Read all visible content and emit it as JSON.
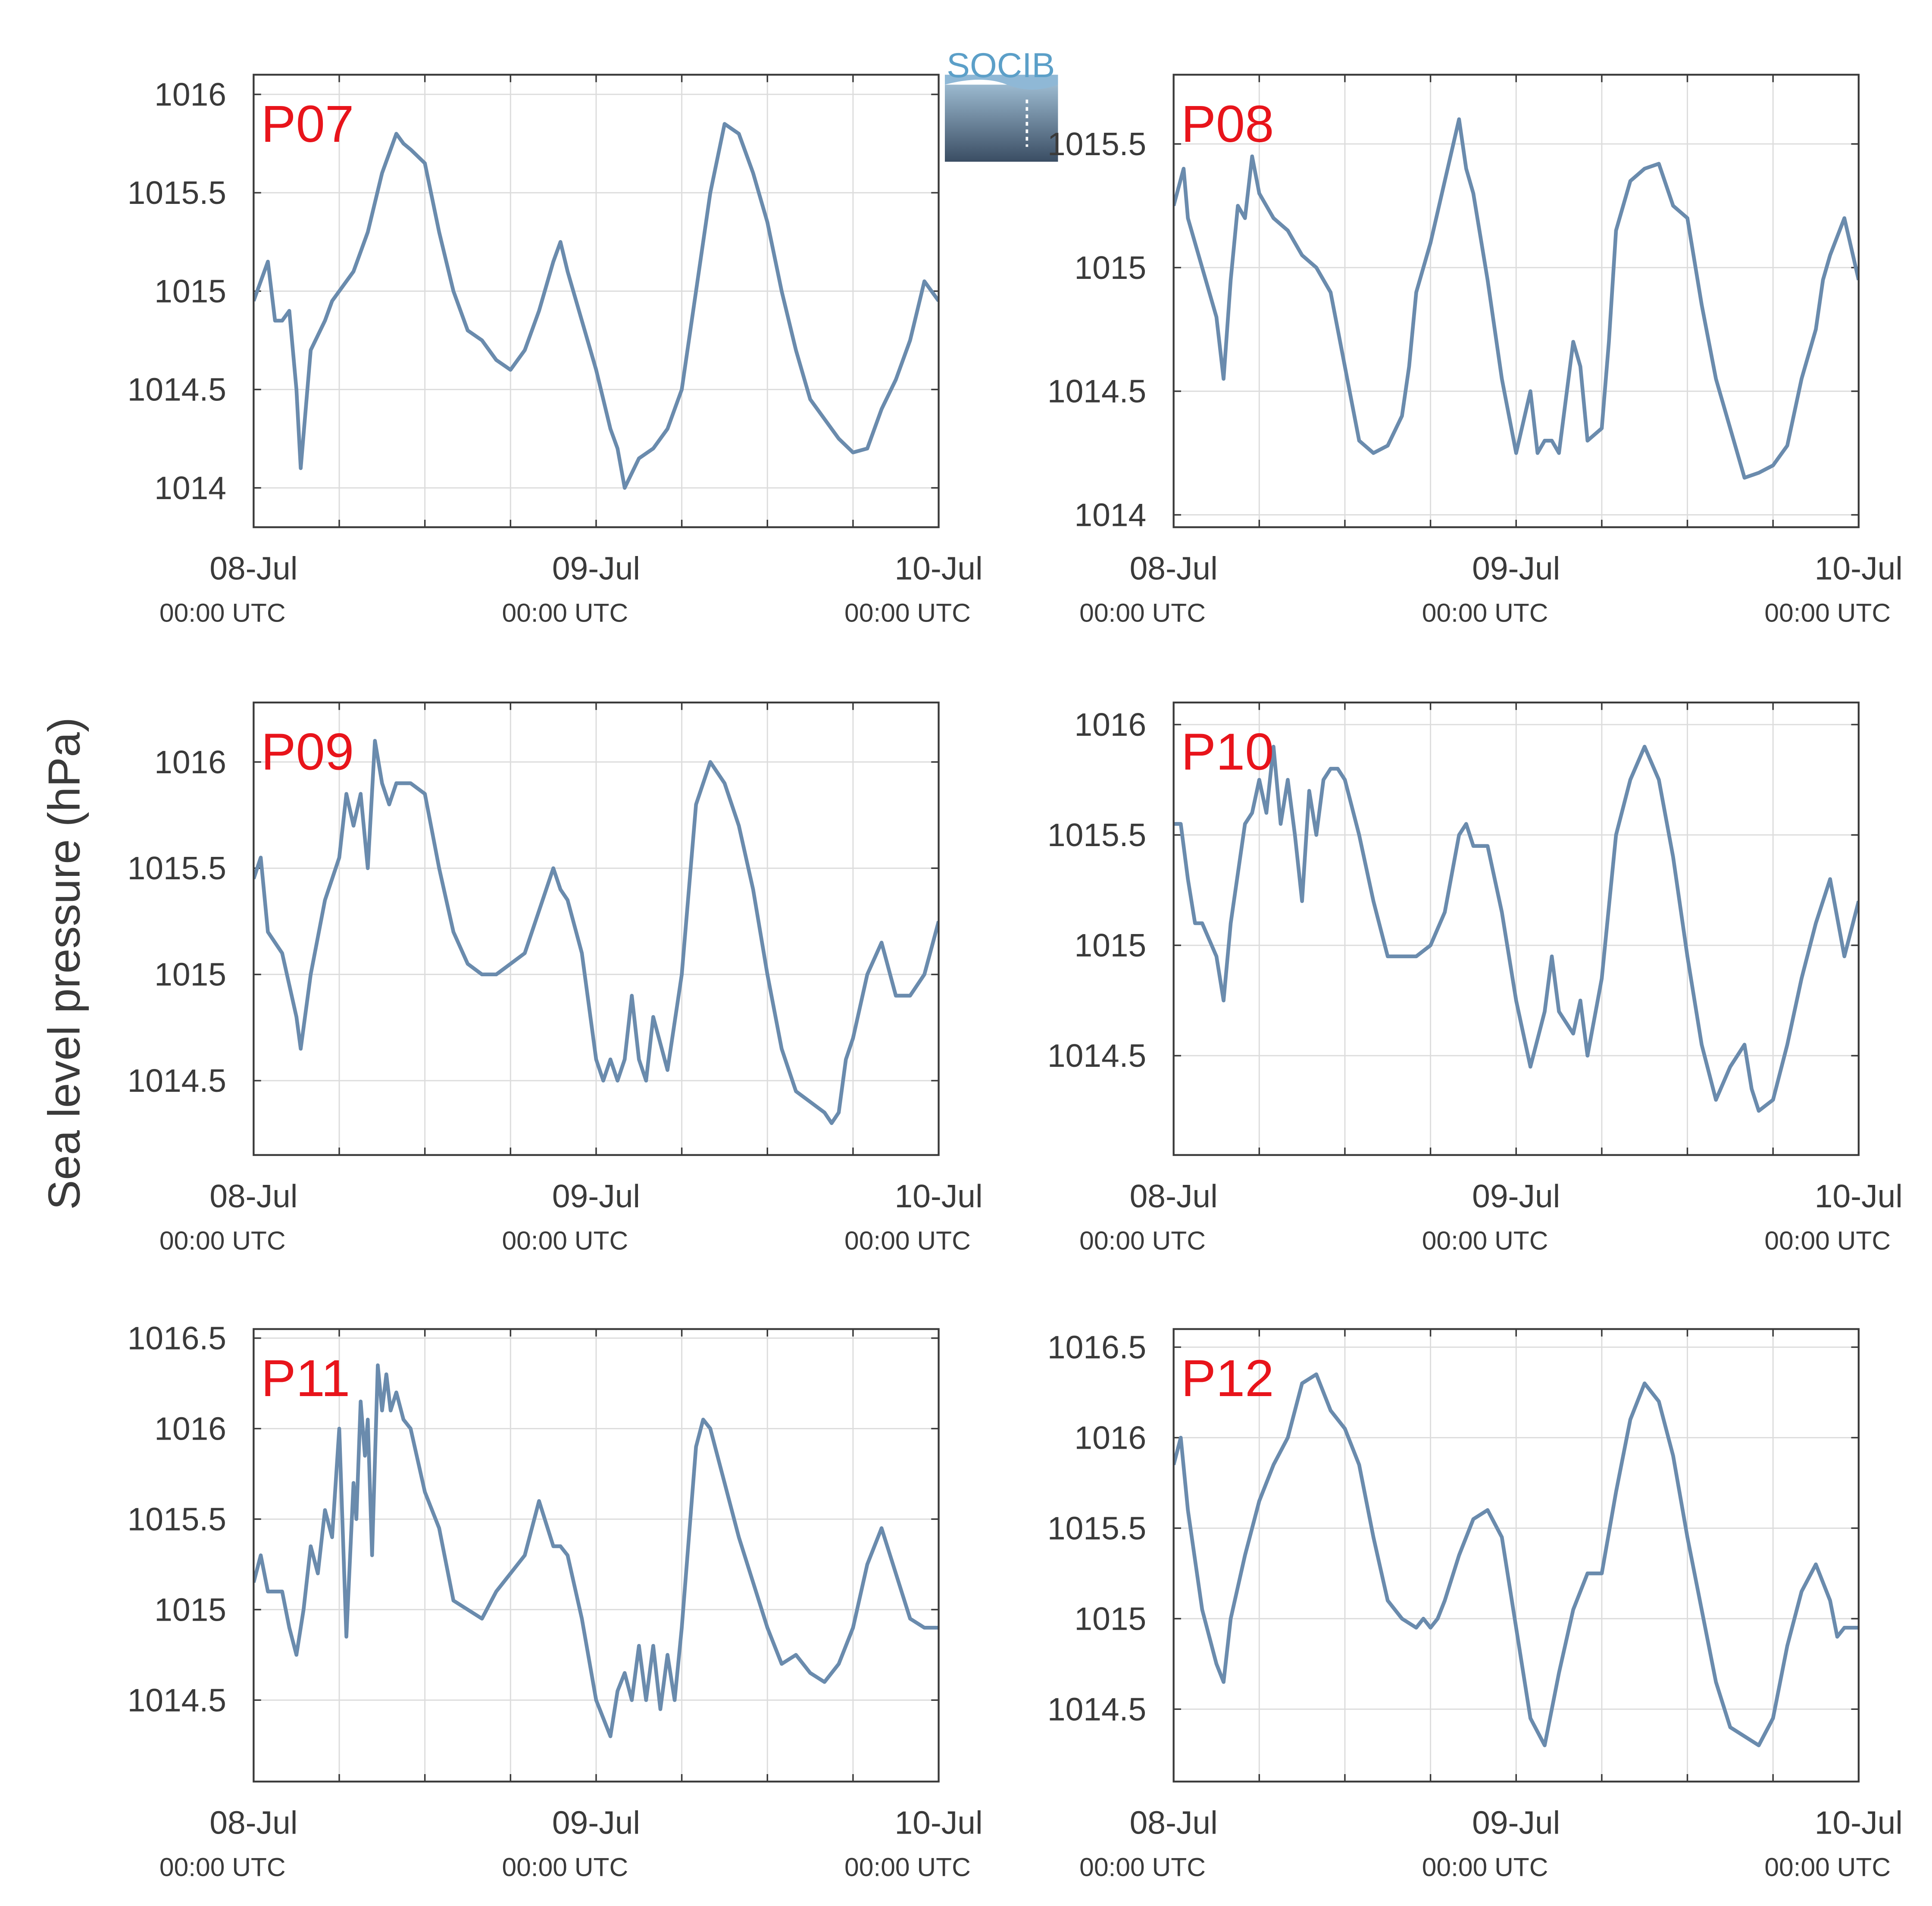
{
  "figure": {
    "ylabel": "Sea level pressure (hPa)",
    "logo_text": "SOCIB",
    "colors": {
      "line": "#6a8bad",
      "panel_label": "#e8141b",
      "grid": "#dcdcdc",
      "axis": "#3a3a3a",
      "text": "#3a3a3a"
    }
  },
  "chart_data": [
    {
      "type": "line",
      "label": "P07",
      "x_ticks": [
        "08-Jul",
        "09-Jul",
        "10-Jul"
      ],
      "x_tick_sub": "00:00 UTC",
      "xlim_hours": [
        0,
        48
      ],
      "ylim": [
        1013.8,
        1016.1
      ],
      "y_ticks": [
        1014,
        1014.5,
        1015,
        1015.5,
        1016
      ],
      "y_tick_labels": [
        "1014",
        "1014.5",
        "1015",
        "1015.5",
        "1016"
      ],
      "hours": [
        0,
        1,
        1.5,
        2,
        2.5,
        3,
        3.3,
        4,
        5,
        5.5,
        6,
        7,
        8,
        9,
        10,
        10.5,
        11,
        12,
        13,
        14,
        15,
        16,
        17,
        18,
        19,
        20,
        21,
        21.5,
        22,
        23,
        24,
        25,
        25.5,
        26,
        27,
        28,
        29,
        30,
        31,
        32,
        33,
        34,
        35,
        36,
        37,
        38,
        39,
        40,
        41,
        42,
        43,
        44,
        45,
        46,
        47,
        48
      ],
      "values": [
        1014.95,
        1015.15,
        1014.85,
        1014.85,
        1014.9,
        1014.5,
        1014.1,
        1014.7,
        1014.85,
        1014.95,
        1015.0,
        1015.1,
        1015.3,
        1015.6,
        1015.8,
        1015.75,
        1015.72,
        1015.65,
        1015.3,
        1015.0,
        1014.8,
        1014.75,
        1014.65,
        1014.6,
        1014.7,
        1014.9,
        1015.15,
        1015.25,
        1015.1,
        1014.85,
        1014.6,
        1014.3,
        1014.2,
        1014.0,
        1014.15,
        1014.2,
        1014.3,
        1014.5,
        1015.0,
        1015.5,
        1015.85,
        1015.8,
        1015.6,
        1015.35,
        1015.0,
        1014.7,
        1014.45,
        1014.35,
        1014.25,
        1014.18,
        1014.2,
        1014.4,
        1014.55,
        1014.75,
        1015.05,
        1014.95
      ]
    },
    {
      "type": "line",
      "label": "P08",
      "x_ticks": [
        "08-Jul",
        "09-Jul",
        "10-Jul"
      ],
      "x_tick_sub": "00:00 UTC",
      "xlim_hours": [
        0,
        48
      ],
      "ylim": [
        1013.95,
        1015.78
      ],
      "y_ticks": [
        1014,
        1014.5,
        1015,
        1015.5
      ],
      "y_tick_labels": [
        "1014",
        "1014.5",
        "1015",
        "1015.5"
      ],
      "hours": [
        0,
        0.7,
        1,
        2,
        3,
        3.5,
        4,
        4.5,
        5,
        5.5,
        6,
        6.5,
        7,
        8,
        9,
        10,
        11,
        12,
        13,
        14,
        15,
        16,
        16.5,
        17,
        18,
        19,
        20,
        20.5,
        21,
        22,
        23,
        24,
        25,
        25.5,
        26,
        26.5,
        27,
        28,
        28.5,
        29,
        30,
        30.5,
        31,
        32,
        33,
        34,
        35,
        36,
        37,
        38,
        39,
        40,
        41,
        42,
        43,
        44,
        45,
        45.5,
        46,
        47,
        48
      ],
      "values": [
        1015.25,
        1015.4,
        1015.2,
        1015.0,
        1014.8,
        1014.55,
        1014.95,
        1015.25,
        1015.2,
        1015.45,
        1015.3,
        1015.25,
        1015.2,
        1015.15,
        1015.05,
        1015.0,
        1014.9,
        1014.6,
        1014.3,
        1014.25,
        1014.28,
        1014.4,
        1014.6,
        1014.9,
        1015.1,
        1015.35,
        1015.6,
        1015.4,
        1015.3,
        1014.95,
        1014.55,
        1014.25,
        1014.5,
        1014.25,
        1014.3,
        1014.3,
        1014.25,
        1014.7,
        1014.6,
        1014.3,
        1014.35,
        1014.7,
        1015.15,
        1015.35,
        1015.4,
        1015.42,
        1015.25,
        1015.2,
        1014.85,
        1014.55,
        1014.35,
        1014.15,
        1014.17,
        1014.2,
        1014.28,
        1014.55,
        1014.75,
        1014.95,
        1015.05,
        1015.2,
        1014.95
      ]
    },
    {
      "type": "line",
      "label": "P09",
      "x_ticks": [
        "08-Jul",
        "09-Jul",
        "10-Jul"
      ],
      "x_tick_sub": "00:00 UTC",
      "xlim_hours": [
        0,
        48
      ],
      "ylim": [
        1014.15,
        1016.28
      ],
      "y_ticks": [
        1014.5,
        1015,
        1015.5,
        1016
      ],
      "y_tick_labels": [
        "1014.5",
        "1015",
        "1015.5",
        "1016"
      ],
      "hours": [
        0,
        0.5,
        1,
        2,
        2.5,
        3,
        3.3,
        4,
        5,
        6,
        6.5,
        7,
        7.5,
        8,
        8.5,
        9,
        9.5,
        10,
        11,
        12,
        13,
        14,
        15,
        16,
        17,
        18,
        19,
        20,
        21,
        21.5,
        22,
        23,
        24,
        24.5,
        25,
        25.5,
        26,
        26.5,
        27,
        27.5,
        28,
        29,
        30,
        31,
        32,
        32.5,
        33,
        34,
        35,
        36,
        37,
        38,
        39,
        40,
        40.5,
        41,
        41.5,
        42,
        43,
        44,
        45,
        46,
        47,
        48
      ],
      "values": [
        1015.45,
        1015.55,
        1015.2,
        1015.1,
        1014.95,
        1014.8,
        1014.65,
        1015.0,
        1015.35,
        1015.55,
        1015.85,
        1015.7,
        1015.85,
        1015.5,
        1016.1,
        1015.9,
        1015.8,
        1015.9,
        1015.9,
        1015.85,
        1015.5,
        1015.2,
        1015.05,
        1015.0,
        1015.0,
        1015.05,
        1015.1,
        1015.3,
        1015.5,
        1015.4,
        1015.35,
        1015.1,
        1014.6,
        1014.5,
        1014.6,
        1014.5,
        1014.6,
        1014.9,
        1014.6,
        1014.5,
        1014.8,
        1014.55,
        1015.0,
        1015.8,
        1016.0,
        1015.95,
        1015.9,
        1015.7,
        1015.4,
        1015.0,
        1014.65,
        1014.45,
        1014.4,
        1014.35,
        1014.3,
        1014.35,
        1014.6,
        1014.7,
        1015.0,
        1015.15,
        1014.9,
        1014.9,
        1015.0,
        1015.25
      ]
    },
    {
      "type": "line",
      "label": "P10",
      "x_ticks": [
        "08-Jul",
        "09-Jul",
        "10-Jul"
      ],
      "x_tick_sub": "00:00 UTC",
      "xlim_hours": [
        0,
        48
      ],
      "ylim": [
        1014.05,
        1016.1
      ],
      "y_ticks": [
        1014.5,
        1015,
        1015.5,
        1016
      ],
      "y_tick_labels": [
        "1014.5",
        "1015",
        "1015.5",
        "1016"
      ],
      "hours": [
        0,
        0.5,
        1,
        1.5,
        2,
        3,
        3.5,
        4,
        5,
        5.5,
        6,
        6.5,
        7,
        7.5,
        8,
        8.5,
        9,
        9.5,
        10,
        10.5,
        11,
        11.5,
        12,
        13,
        14,
        15,
        16,
        17,
        18,
        19,
        20,
        20.5,
        21,
        22,
        23,
        24,
        25,
        26,
        26.5,
        27,
        28,
        28.5,
        29,
        30,
        31,
        32,
        33,
        34,
        35,
        36,
        37,
        38,
        39,
        40,
        40.5,
        41,
        42,
        43,
        44,
        45,
        46,
        47,
        48
      ],
      "values": [
        1015.55,
        1015.55,
        1015.3,
        1015.1,
        1015.1,
        1014.95,
        1014.75,
        1015.1,
        1015.55,
        1015.6,
        1015.75,
        1015.6,
        1015.9,
        1015.55,
        1015.75,
        1015.5,
        1015.2,
        1015.7,
        1015.5,
        1015.75,
        1015.8,
        1015.8,
        1015.75,
        1015.5,
        1015.2,
        1014.95,
        1014.95,
        1014.95,
        1015.0,
        1015.15,
        1015.5,
        1015.55,
        1015.45,
        1015.45,
        1015.15,
        1014.75,
        1014.45,
        1014.7,
        1014.95,
        1014.7,
        1014.6,
        1014.75,
        1014.5,
        1014.85,
        1015.5,
        1015.75,
        1015.9,
        1015.75,
        1015.4,
        1014.95,
        1014.55,
        1014.3,
        1014.45,
        1014.55,
        1014.35,
        1014.25,
        1014.3,
        1014.55,
        1014.85,
        1015.1,
        1015.3,
        1014.95,
        1015.2
      ]
    },
    {
      "type": "line",
      "label": "P11",
      "x_ticks": [
        "08-Jul",
        "09-Jul",
        "10-Jul"
      ],
      "x_tick_sub": "00:00 UTC",
      "xlim_hours": [
        0,
        48
      ],
      "ylim": [
        1014.05,
        1016.55
      ],
      "y_ticks": [
        1014.5,
        1015,
        1015.5,
        1016,
        1016.5
      ],
      "y_tick_labels": [
        "1014.5",
        "1015",
        "1015.5",
        "1016",
        "1016.5"
      ],
      "hours": [
        0,
        0.5,
        1,
        2,
        2.5,
        3,
        3.5,
        4,
        4.5,
        5,
        5.5,
        6,
        6.5,
        7,
        7.2,
        7.5,
        7.8,
        8,
        8.3,
        8.7,
        9,
        9.3,
        9.6,
        10,
        10.5,
        11,
        12,
        13,
        14,
        15,
        16,
        17,
        18,
        19,
        20,
        21,
        21.5,
        22,
        23,
        24,
        25,
        25.5,
        26,
        26.5,
        27,
        27.5,
        28,
        28.5,
        29,
        29.5,
        30,
        31,
        31.5,
        32,
        33,
        34,
        35,
        36,
        37,
        38,
        39,
        40,
        41,
        42,
        43,
        44,
        45,
        46,
        47,
        48
      ],
      "values": [
        1015.15,
        1015.3,
        1015.1,
        1015.1,
        1014.9,
        1014.75,
        1015.0,
        1015.35,
        1015.2,
        1015.55,
        1015.4,
        1016.0,
        1014.85,
        1015.7,
        1015.5,
        1016.15,
        1015.85,
        1016.05,
        1015.3,
        1016.35,
        1016.1,
        1016.3,
        1016.1,
        1016.2,
        1016.05,
        1016.0,
        1015.65,
        1015.45,
        1015.05,
        1015.0,
        1014.95,
        1015.1,
        1015.2,
        1015.3,
        1015.6,
        1015.35,
        1015.35,
        1015.3,
        1014.95,
        1014.5,
        1014.3,
        1014.55,
        1014.65,
        1014.5,
        1014.8,
        1014.5,
        1014.8,
        1014.45,
        1014.75,
        1014.5,
        1014.9,
        1015.9,
        1016.05,
        1016.0,
        1015.7,
        1015.4,
        1015.15,
        1014.9,
        1014.7,
        1014.75,
        1014.65,
        1014.6,
        1014.7,
        1014.9,
        1015.25,
        1015.45,
        1015.2,
        1014.95,
        1014.9,
        1014.9
      ]
    },
    {
      "type": "line",
      "label": "P12",
      "x_ticks": [
        "08-Jul",
        "09-Jul",
        "10-Jul"
      ],
      "x_tick_sub": "00:00 UTC",
      "xlim_hours": [
        0,
        48
      ],
      "ylim": [
        1014.1,
        1016.6
      ],
      "y_ticks": [
        1014.5,
        1015,
        1015.5,
        1016,
        1016.5
      ],
      "y_tick_labels": [
        "1014.5",
        "1015",
        "1015.5",
        "1016",
        "1016.5"
      ],
      "hours": [
        0,
        0.5,
        1,
        2,
        3,
        3.5,
        4,
        5,
        6,
        7,
        8,
        9,
        10,
        11,
        12,
        13,
        14,
        15,
        16,
        17,
        17.5,
        18,
        18.5,
        19,
        20,
        21,
        22,
        23,
        23.5,
        24,
        25,
        26,
        27,
        28,
        29,
        30,
        31,
        32,
        33,
        34,
        35,
        36,
        37,
        38,
        39,
        40,
        41,
        42,
        43,
        44,
        45,
        46,
        46.5,
        47,
        48
      ],
      "values": [
        1015.85,
        1016.0,
        1015.6,
        1015.05,
        1014.75,
        1014.65,
        1015.0,
        1015.35,
        1015.65,
        1015.85,
        1016.0,
        1016.3,
        1016.35,
        1016.15,
        1016.05,
        1015.85,
        1015.45,
        1015.1,
        1015.0,
        1014.95,
        1015.0,
        1014.95,
        1015.0,
        1015.1,
        1015.35,
        1015.55,
        1015.6,
        1015.45,
        1015.2,
        1014.95,
        1014.45,
        1014.3,
        1014.7,
        1015.05,
        1015.25,
        1015.25,
        1015.7,
        1016.1,
        1016.3,
        1016.2,
        1015.9,
        1015.45,
        1015.05,
        1014.65,
        1014.4,
        1014.35,
        1014.3,
        1014.45,
        1014.85,
        1015.15,
        1015.3,
        1015.1,
        1014.9,
        1014.95,
        1014.95
      ]
    }
  ]
}
